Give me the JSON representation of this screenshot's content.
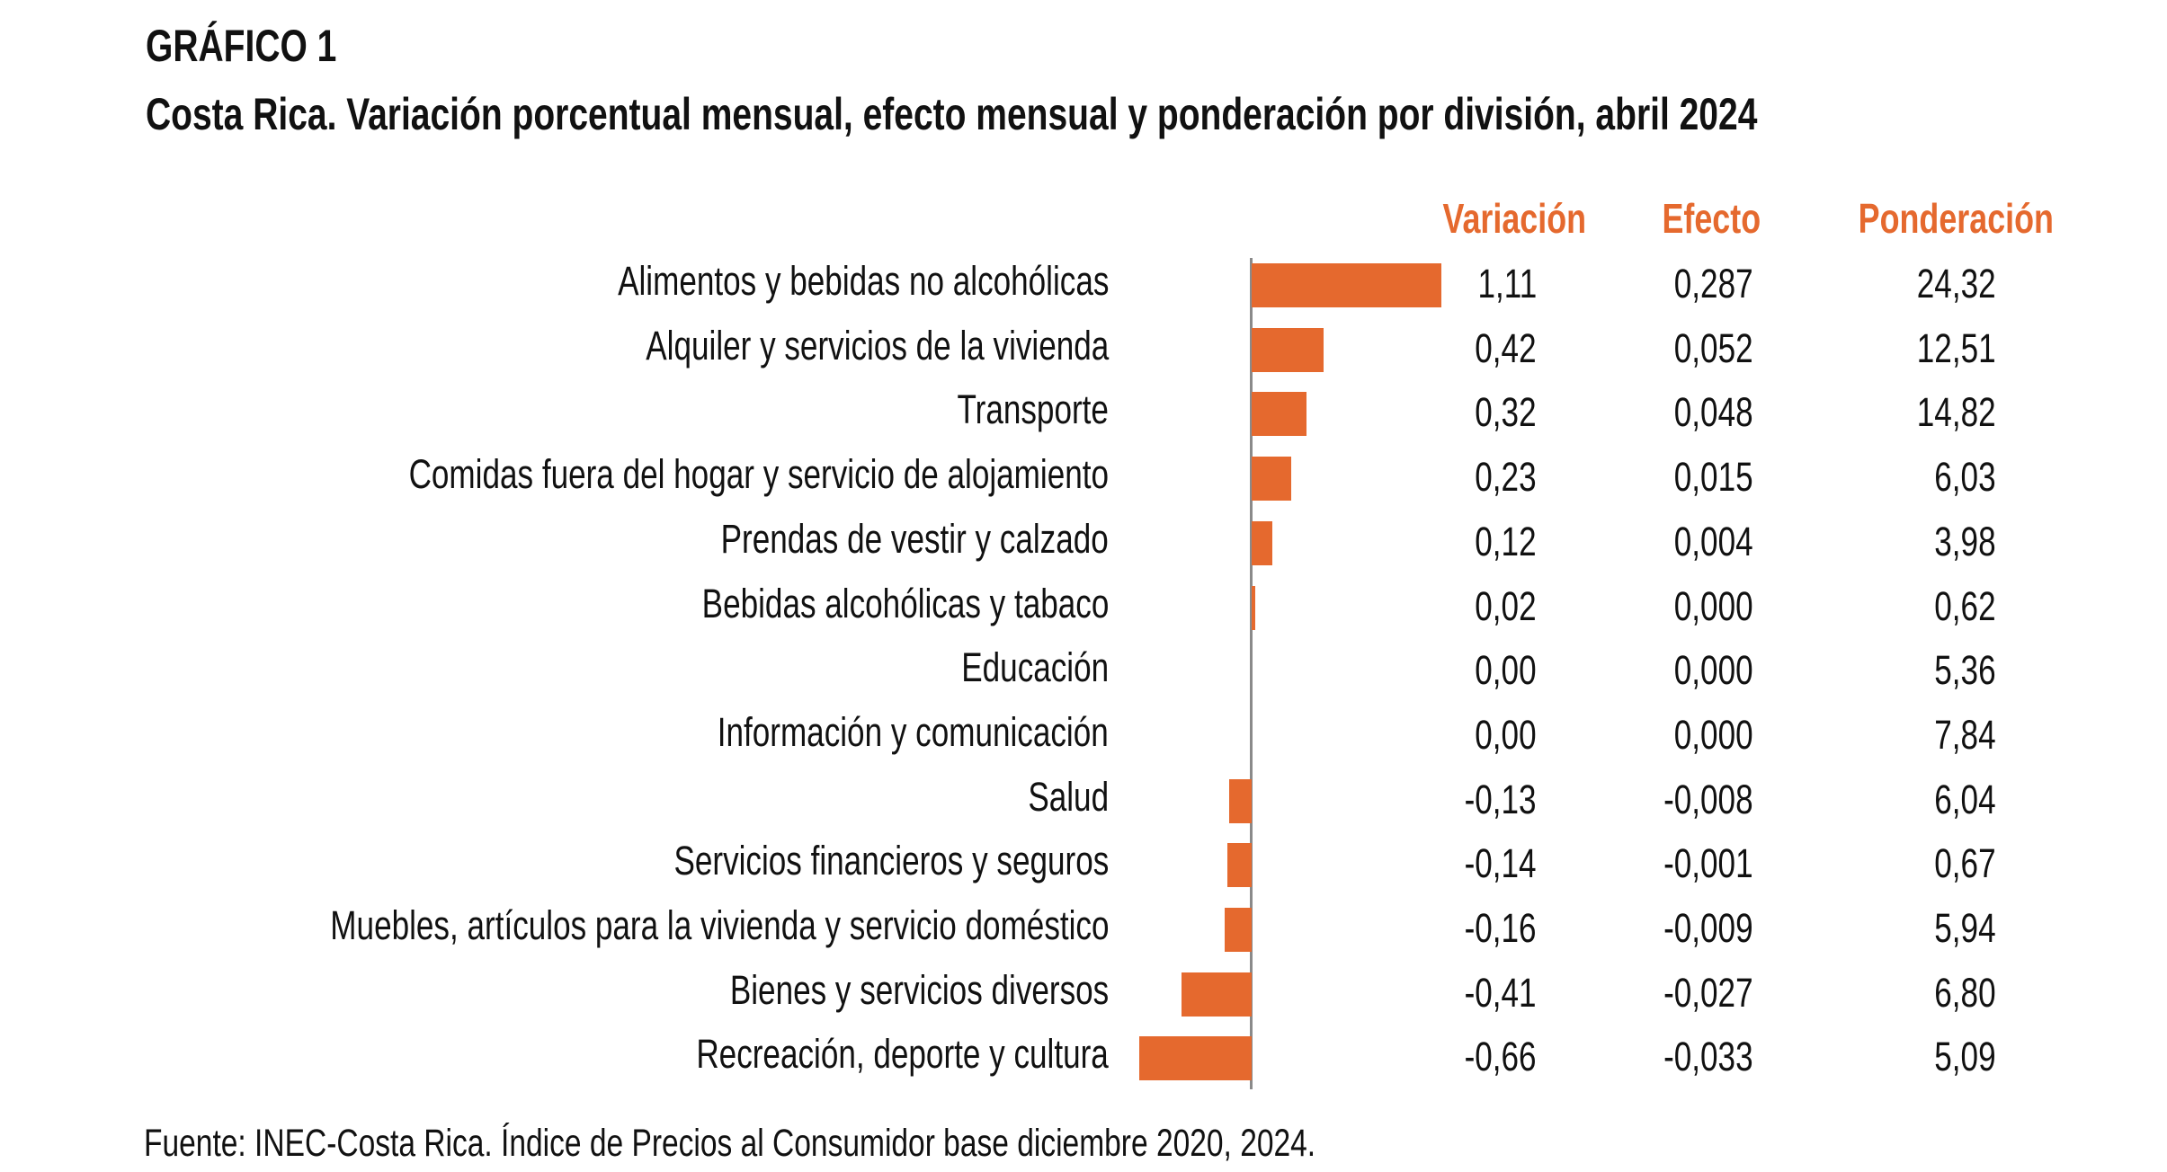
{
  "title": "GRÁFICO 1",
  "subtitle": "Costa Rica. Variación porcentual mensual, efecto mensual y ponderación por división, abril 2024",
  "source": "Fuente: INEC-Costa Rica. Índice de Precios al Consumidor base diciembre 2020, 2024.",
  "colors": {
    "bar": "#E5692E",
    "header": "#E5692E",
    "axis": "#8a8a8a"
  },
  "chart_data": {
    "type": "bar",
    "orientation": "horizontal",
    "title": "Costa Rica. Variación porcentual mensual, efecto mensual y ponderación por división, abril 2024",
    "columns": {
      "variacion": "Variación",
      "efecto": "Efecto",
      "ponderacion": "Ponderación"
    },
    "categories": [
      "Alimentos y bebidas no alcohólicas",
      "Alquiler y servicios de la vivienda",
      "Transporte",
      "Comidas fuera del hogar y servicio de alojamiento",
      "Prendas de vestir y calzado",
      "Bebidas alcohólicas y tabaco",
      "Educación",
      "Información y comunicación",
      "Salud",
      "Servicios financieros y seguros",
      "Muebles, artículos para la vivienda y servicio doméstico",
      "Bienes y servicios diversos",
      "Recreación, deporte y cultura"
    ],
    "variacion": [
      1.11,
      0.42,
      0.32,
      0.23,
      0.12,
      0.02,
      0.0,
      0.0,
      -0.13,
      -0.14,
      -0.16,
      -0.41,
      -0.66
    ],
    "variacion_labels": [
      "1,11",
      "0,42",
      "0,32",
      "0,23",
      "0,12",
      "0,02",
      "0,00",
      "0,00",
      "-0,13",
      "-0,14",
      "-0,16",
      "-0,41",
      "-0,66"
    ],
    "efecto_labels": [
      "0,287",
      "0,052",
      "0,048",
      "0,015",
      "0,004",
      "0,000",
      "0,000",
      "0,000",
      "-0,008",
      "-0,001",
      "-0,009",
      "-0,027",
      "-0,033"
    ],
    "ponderacion_labels": [
      "24,32",
      "12,51",
      "14,82",
      "6,03",
      "3,98",
      "0,62",
      "5,36",
      "7,84",
      "6,04",
      "0,67",
      "5,94",
      "6,80",
      "5,09"
    ]
  }
}
